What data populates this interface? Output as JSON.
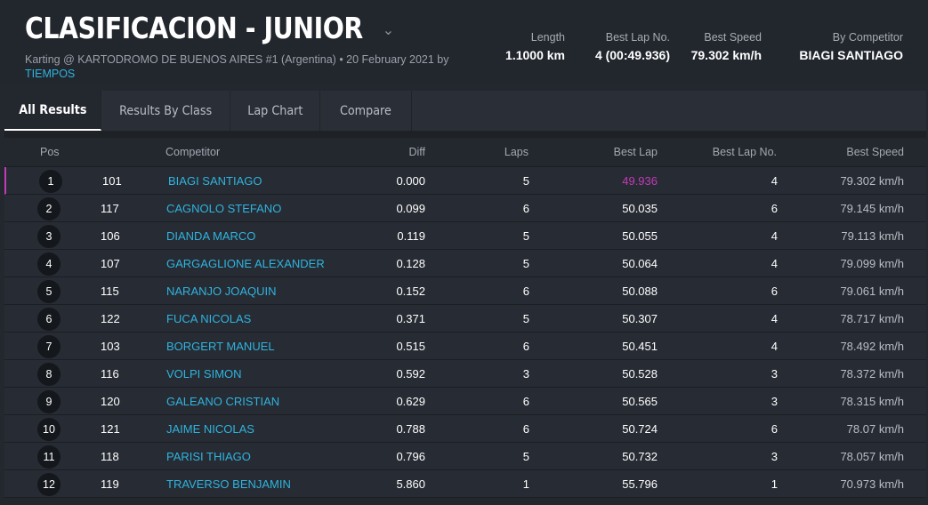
{
  "header": {
    "title": "CLASIFICACION - JUNIOR",
    "subtitle_prefix": "Karting @ KARTODROMO DE BUENOS AIRES #1 (Argentina) • 20 February 2021 by",
    "subtitle_link": "TIEMPOS",
    "stats": [
      {
        "label": "Length",
        "value": "1.1000 km"
      },
      {
        "label": "Best Lap No.",
        "value": "4 (00:49.936)"
      },
      {
        "label": "Best Speed",
        "value": "79.302 km/h"
      },
      {
        "label": "By Competitor",
        "value": "BIAGI SANTIAGO"
      }
    ]
  },
  "tabs": [
    {
      "label": "All Results",
      "active": true
    },
    {
      "label": "Results By Class"
    },
    {
      "label": "Lap Chart"
    },
    {
      "label": "Compare"
    }
  ],
  "columns": {
    "pos": "Pos",
    "competitor": "Competitor",
    "diff": "Diff",
    "laps": "Laps",
    "best_lap": "Best Lap",
    "best_lap_no": "Best Lap No.",
    "best_speed": "Best Speed"
  },
  "rows": [
    {
      "pos": "1",
      "num": "101",
      "name": "BIAGI SANTIAGO",
      "diff": "0.000",
      "laps": "5",
      "best": "49.936",
      "best_no": "4",
      "speed": "79.302 km/h"
    },
    {
      "pos": "2",
      "num": "117",
      "name": "CAGNOLO STEFANO",
      "diff": "0.099",
      "laps": "6",
      "best": "50.035",
      "best_no": "6",
      "speed": "79.145 km/h"
    },
    {
      "pos": "3",
      "num": "106",
      "name": "DIANDA MARCO",
      "diff": "0.119",
      "laps": "5",
      "best": "50.055",
      "best_no": "4",
      "speed": "79.113 km/h"
    },
    {
      "pos": "4",
      "num": "107",
      "name": "GARGAGLIONE ALEXANDER",
      "diff": "0.128",
      "laps": "5",
      "best": "50.064",
      "best_no": "4",
      "speed": "79.099 km/h"
    },
    {
      "pos": "5",
      "num": "115",
      "name": "NARANJO JOAQUIN",
      "diff": "0.152",
      "laps": "6",
      "best": "50.088",
      "best_no": "6",
      "speed": "79.061 km/h"
    },
    {
      "pos": "6",
      "num": "122",
      "name": "FUCA NICOLAS",
      "diff": "0.371",
      "laps": "5",
      "best": "50.307",
      "best_no": "4",
      "speed": "78.717 km/h"
    },
    {
      "pos": "7",
      "num": "103",
      "name": "BORGERT MANUEL",
      "diff": "0.515",
      "laps": "6",
      "best": "50.451",
      "best_no": "4",
      "speed": "78.492 km/h"
    },
    {
      "pos": "8",
      "num": "116",
      "name": "VOLPI SIMON",
      "diff": "0.592",
      "laps": "3",
      "best": "50.528",
      "best_no": "3",
      "speed": "78.372 km/h"
    },
    {
      "pos": "9",
      "num": "120",
      "name": "GALEANO CRISTIAN",
      "diff": "0.629",
      "laps": "6",
      "best": "50.565",
      "best_no": "3",
      "speed": "78.315 km/h"
    },
    {
      "pos": "10",
      "num": "121",
      "name": "JAIME NICOLAS",
      "diff": "0.788",
      "laps": "6",
      "best": "50.724",
      "best_no": "6",
      "speed": "78.07 km/h"
    },
    {
      "pos": "11",
      "num": "118",
      "name": "PARISI THIAGO",
      "diff": "0.796",
      "laps": "5",
      "best": "50.732",
      "best_no": "3",
      "speed": "78.057 km/h"
    },
    {
      "pos": "12",
      "num": "119",
      "name": "TRAVERSO BENJAMIN",
      "diff": "5.860",
      "laps": "1",
      "best": "55.796",
      "best_no": "1",
      "speed": "70.973 km/h"
    }
  ],
  "colors": {
    "accent": "#2fb4df",
    "best_lap_highlight": "#c43ab8"
  }
}
